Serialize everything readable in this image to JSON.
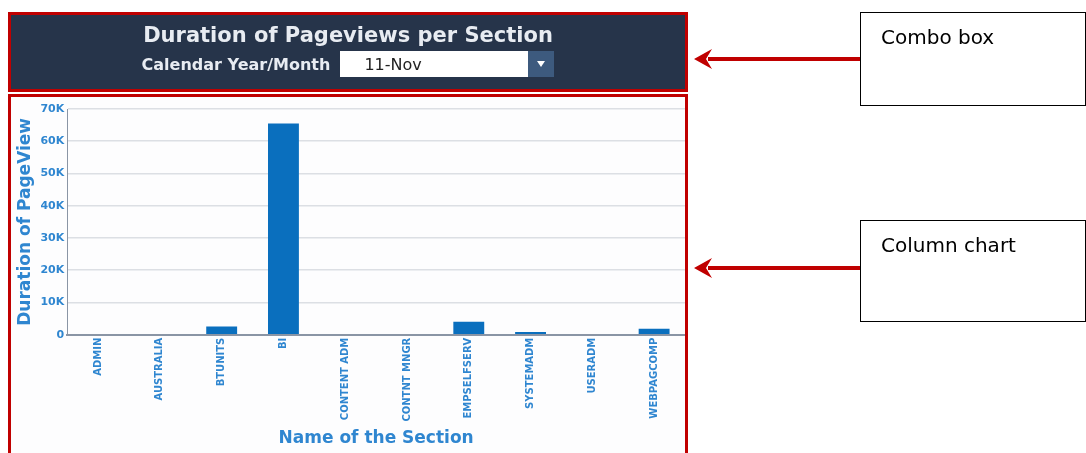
{
  "chart_data": {
    "type": "bar",
    "title": "Duration of Pageviews per Section",
    "xlabel": "Name of the Section",
    "ylabel": "Duration of PageView",
    "categories": [
      "ADMIN",
      "AUSTRALIA",
      "BTUNITS",
      "BI",
      "CONTENT ADM",
      "CONTNT MNGR",
      "EMPSELFSERV",
      "SYSTEMADM",
      "USERADM",
      "WEBPAGCOMP"
    ],
    "values": [
      null,
      0,
      2500,
      65500,
      null,
      0,
      4000,
      800,
      0,
      1800
    ],
    "color": "#0a6fbe",
    "ylim": [
      0,
      70000
    ],
    "yticks": [
      {
        "value": 0,
        "label": "0"
      },
      {
        "value": 10000,
        "label": "10K"
      },
      {
        "value": 20000,
        "label": "20K"
      },
      {
        "value": 30000,
        "label": "30K"
      },
      {
        "value": 40000,
        "label": "40K"
      },
      {
        "value": 50000,
        "label": "50K"
      },
      {
        "value": 60000,
        "label": "60K"
      },
      {
        "value": 70000,
        "label": "70K"
      }
    ],
    "grid": "y",
    "annotations": [
      "Calendar Year/Month",
      "11-Nov",
      "Combo box",
      "Column chart"
    ]
  }
}
